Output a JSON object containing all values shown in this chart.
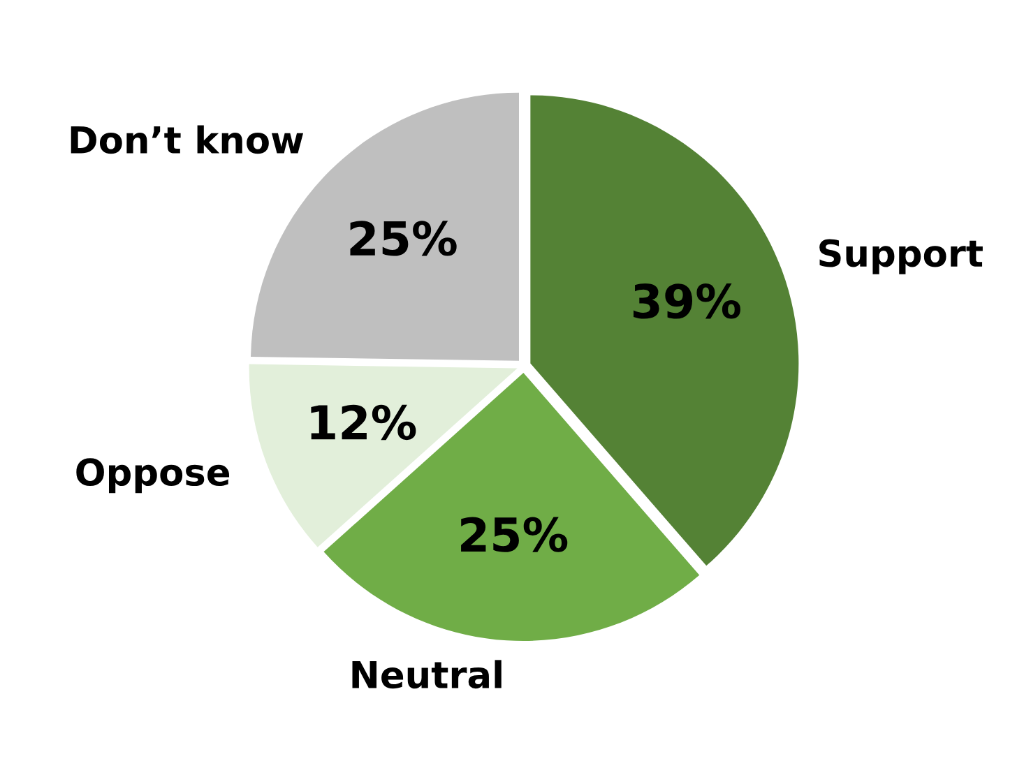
{
  "chart_data": {
    "type": "pie",
    "categories": [
      "Support",
      "Neutral",
      "Oppose",
      "Don’t know"
    ],
    "values": [
      39,
      25,
      12,
      25
    ],
    "colors": [
      "#548235",
      "#70ad47",
      "#e2efda",
      "#bfbfbf"
    ],
    "value_labels": [
      "39%",
      "25%",
      "12%",
      "25%"
    ],
    "legend": false
  }
}
